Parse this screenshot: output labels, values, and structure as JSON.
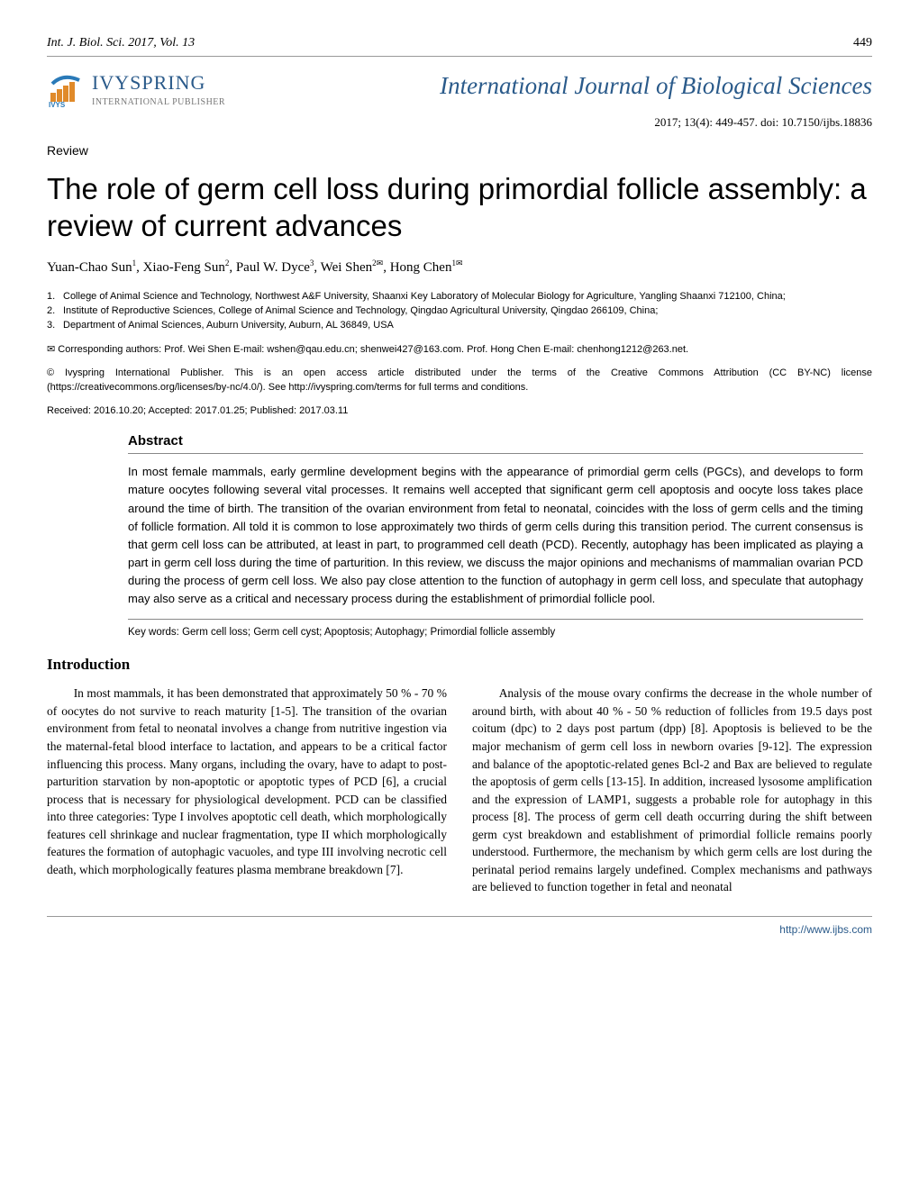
{
  "colors": {
    "brand_blue": "#2a5a8a",
    "rule_gray": "#999999",
    "subtext_gray": "#777777",
    "logo_orange": "#e08a2a",
    "logo_blue": "#2a7ab8"
  },
  "header": {
    "journal_ref": "Int. J. Biol. Sci. 2017, Vol. 13",
    "page_number": "449"
  },
  "publisher": {
    "name": "IVYSPRING",
    "subtitle": "INTERNATIONAL PUBLISHER"
  },
  "journal": {
    "title": "International Journal of Biological Sciences",
    "issue_line": "2017; 13(4): 449-457. doi: 10.7150/ijbs.18836"
  },
  "article": {
    "type_label": "Review",
    "title": "The role of germ cell loss during primordial follicle assembly: a review of current advances",
    "authors_html": "Yuan-Chao Sun<sup>1</sup>, Xiao-Feng Sun<sup>2</sup>, Paul W. Dyce<sup>3</sup>, Wei Shen<sup>2✉</sup>, Hong Chen<sup>1✉</sup>"
  },
  "affiliations": [
    {
      "num": "1.",
      "text": "College of Animal Science and Technology, Northwest A&F University, Shaanxi Key Laboratory of Molecular Biology for Agriculture, Yangling Shaanxi 712100, China;"
    },
    {
      "num": "2.",
      "text": "Institute of Reproductive Sciences, College of Animal Science and Technology, Qingdao Agricultural University, Qingdao 266109, China;"
    },
    {
      "num": "3.",
      "text": "Department of Animal Sciences, Auburn University, Auburn, AL 36849, USA"
    }
  ],
  "corresponding": "✉ Corresponding authors: Prof. Wei Shen E-mail: wshen@qau.edu.cn; shenwei427@163.com.  Prof. Hong Chen E-mail: chenhong1212@263.net.",
  "license": "© Ivyspring International Publisher. This is an open access article distributed under the terms of the Creative Commons Attribution (CC BY-NC) license (https://creativecommons.org/licenses/by-nc/4.0/). See http://ivyspring.com/terms for full terms and conditions.",
  "dates": "Received: 2016.10.20; Accepted: 2017.01.25; Published: 2017.03.11",
  "abstract": {
    "heading": "Abstract",
    "text": "In most female mammals, early germline development begins with the appearance of primordial germ cells (PGCs), and develops to form mature oocytes following several vital processes. It remains well accepted that significant germ cell apoptosis and oocyte loss takes place around the time of birth. The transition of the ovarian environment from fetal to neonatal, coincides with the loss of germ cells and the timing of follicle formation. All told it is common to lose approximately two thirds of germ cells during this transition period. The current consensus is that germ cell loss can be attributed, at least in part, to programmed cell death (PCD). Recently, autophagy has been implicated as playing a part in germ cell loss during the time of parturition. In this review, we discuss the major opinions and mechanisms of mammalian ovarian PCD during the process of germ cell loss. We also pay close attention to the function of autophagy in germ cell loss, and speculate that autophagy may also serve as a critical and necessary process during the establishment of primordial follicle pool.",
    "keywords": "Key words: Germ cell loss; Germ cell cyst; Apoptosis; Autophagy; Primordial follicle assembly"
  },
  "intro": {
    "heading": "Introduction",
    "p1": "In most mammals, it has been demonstrated that approximately 50 % - 70 % of oocytes do not survive to reach maturity [1-5]. The transition of the ovarian environment from fetal to neonatal involves a change from nutritive ingestion via the maternal-fetal blood interface to lactation, and appears to be a critical factor influencing this process. Many organs, including the ovary, have to adapt to post-parturition starvation by non-apoptotic or apoptotic types of PCD [6], a crucial process that is necessary for physiological development. PCD can be classified into three categories: Type I involves apoptotic cell death, which morphologically features cell shrinkage and nuclear fragmentation, type II which morphologically features the formation of autophagic vacuoles, and type III involving necrotic cell death, which morphologically features plasma membrane breakdown [7].",
    "p2": "Analysis of the mouse ovary confirms the decrease in the whole number of around birth, with about 40 % - 50 % reduction of follicles from 19.5 days post coitum (dpc) to 2 days post partum (dpp) [8]. Apoptosis is believed to be the major mechanism of germ cell loss in newborn ovaries [9-12]. The expression and balance of the apoptotic-related genes Bcl-2 and Bax are believed to regulate the apoptosis of germ cells [13-15]. In addition, increased lysosome amplification and the expression of LAMP1, suggests a probable role for autophagy in this process [8]. The process of germ cell death occurring during the shift between germ cyst breakdown and establishment of primordial follicle remains poorly understood. Furthermore, the mechanism by which germ cells are lost during the perinatal period remains largely undefined. Complex mechanisms and pathways are believed to function together in fetal and neonatal"
  },
  "footer": {
    "url": "http://www.ijbs.com"
  }
}
